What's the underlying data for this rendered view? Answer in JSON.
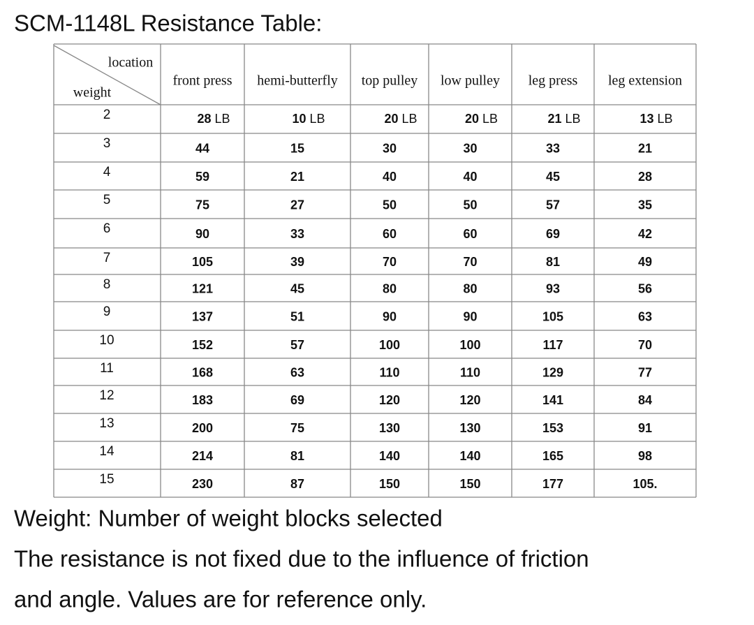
{
  "title": "SCM-1148L Resistance Table:",
  "table": {
    "corner": {
      "column_label": "location",
      "row_label": "weight"
    },
    "columns": [
      "front press",
      "hemi-butterfly",
      "top pulley",
      "low pulley",
      "leg press",
      "leg extension"
    ],
    "first_row": {
      "weight": "2",
      "cells": [
        {
          "value": "28",
          "unit": "LB"
        },
        {
          "value": "10",
          "unit": "LB"
        },
        {
          "value": "20",
          "unit": "LB"
        },
        {
          "value": "20",
          "unit": "LB"
        },
        {
          "value": "21",
          "unit": "LB"
        },
        {
          "value": "13",
          "unit": "LB"
        }
      ]
    },
    "rows": [
      {
        "weight": "3",
        "cells": [
          "44",
          "15",
          "30",
          "30",
          "33",
          "21"
        ]
      },
      {
        "weight": "4",
        "cells": [
          "59",
          "21",
          "40",
          "40",
          "45",
          "28"
        ]
      },
      {
        "weight": "5",
        "cells": [
          "75",
          "27",
          "50",
          "50",
          "57",
          "35"
        ]
      },
      {
        "weight": "6",
        "cells": [
          "90",
          "33",
          "60",
          "60",
          "69",
          "42"
        ]
      },
      {
        "weight": "7",
        "cells": [
          "105",
          "39",
          "70",
          "70",
          "81",
          "49"
        ]
      },
      {
        "weight": "8",
        "cells": [
          "121",
          "45",
          "80",
          "80",
          "93",
          "56"
        ]
      },
      {
        "weight": "9",
        "cells": [
          "137",
          "51",
          "90",
          "90",
          "105",
          "63"
        ]
      },
      {
        "weight": "10",
        "cells": [
          "152",
          "57",
          "100",
          "100",
          "117",
          "70"
        ]
      },
      {
        "weight": "11",
        "cells": [
          "168",
          "63",
          "110",
          "110",
          "129",
          "77"
        ]
      },
      {
        "weight": "12",
        "cells": [
          "183",
          "69",
          "120",
          "120",
          "141",
          "84"
        ]
      },
      {
        "weight": "13",
        "cells": [
          "200",
          "75",
          "130",
          "130",
          "153",
          "91"
        ]
      },
      {
        "weight": "14",
        "cells": [
          "214",
          "81",
          "140",
          "140",
          "165",
          "98"
        ]
      },
      {
        "weight": "15",
        "cells": [
          "230",
          "87",
          "150",
          "150",
          "177",
          "105."
        ]
      }
    ]
  },
  "notes": [
    "Weight: Number of weight blocks selected",
    "The resistance is not fixed due to the influence of friction",
    "and angle. Values are for reference only."
  ]
}
